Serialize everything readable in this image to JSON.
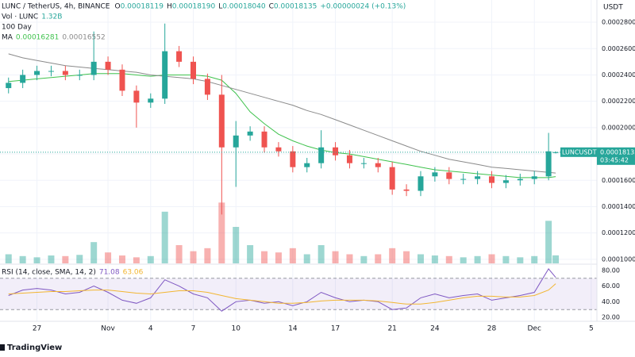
{
  "header": {
    "symbol": "LUNC / TetherUS, 4h, BINANCE",
    "ohlc": [
      {
        "k": "O",
        "v": "0.00018119"
      },
      {
        "k": "H",
        "v": "0.00018190"
      },
      {
        "k": "L",
        "v": "0.00018040"
      },
      {
        "k": "C",
        "v": "0.00018135"
      }
    ],
    "change": "+0.00000024 (+0.13%)"
  },
  "chart_data": [
    {
      "type": "candlestick",
      "y_axis_label": "USDT",
      "x": [
        25,
        26,
        27,
        28,
        29,
        30,
        31,
        32,
        33,
        34,
        35,
        36,
        37,
        38,
        39,
        40,
        41,
        42,
        43,
        44,
        45,
        46,
        47,
        48,
        49,
        50,
        51,
        52,
        53,
        54,
        55,
        56,
        57,
        58,
        59,
        60,
        61,
        62,
        63,
        63.5
      ],
      "open": [
        0.00023,
        0.000234,
        0.00024,
        0.000243,
        0.000243,
        0.00024,
        0.00024,
        0.00025,
        0.000244,
        0.000228,
        0.000219,
        0.000222,
        0.000258,
        0.00025,
        0.000237,
        0.000225,
        0.000185,
        0.000194,
        0.000197,
        0.000185,
        0.000182,
        0.00017,
        0.000173,
        0.000185,
        0.000179,
        0.000173,
        0.000173,
        0.00017,
        0.000153,
        0.000152,
        0.000163,
        0.000166,
        0.000161,
        0.000161,
        0.000163,
        0.000158,
        0.00016,
        0.000161,
        0.000163,
        0.00018119
      ],
      "high": [
        0.000238,
        0.000244,
        0.000247,
        0.000247,
        0.000247,
        0.000244,
        0.000273,
        0.000254,
        0.000248,
        0.000232,
        0.000226,
        0.000279,
        0.000262,
        0.000254,
        0.000241,
        0.00024,
        0.000205,
        0.000201,
        0.000201,
        0.000189,
        0.000186,
        0.000177,
        0.000198,
        0.000189,
        0.000183,
        0.000177,
        0.000177,
        0.000174,
        0.000157,
        0.000167,
        0.00017,
        0.00017,
        0.000165,
        0.000167,
        0.000167,
        0.000164,
        0.000165,
        0.000167,
        0.000196,
        0.0001819
      ],
      "low": [
        0.000226,
        0.00023,
        0.000236,
        0.000239,
        0.000236,
        0.000236,
        0.000236,
        0.00024,
        0.000224,
        0.0002,
        0.000215,
        0.000218,
        0.000246,
        0.000233,
        0.000221,
        0.000134,
        0.000155,
        0.00019,
        0.000181,
        0.000178,
        0.000166,
        0.000166,
        0.000169,
        0.000175,
        0.000169,
        0.000169,
        0.000166,
        0.000149,
        0.000148,
        0.000148,
        0.000159,
        0.000157,
        0.000157,
        0.000157,
        0.000154,
        0.000154,
        0.000156,
        0.000157,
        0.00016,
        0.0001804
      ],
      "close": [
        0.000234,
        0.00024,
        0.000243,
        0.000243,
        0.00024,
        0.00024,
        0.00025,
        0.000244,
        0.000228,
        0.000219,
        0.000222,
        0.000258,
        0.00025,
        0.000237,
        0.000225,
        0.000185,
        0.000194,
        0.000197,
        0.000185,
        0.000182,
        0.00017,
        0.000173,
        0.000185,
        0.000179,
        0.000173,
        0.000173,
        0.00017,
        0.000153,
        0.000152,
        0.000163,
        0.000166,
        0.000161,
        0.000161,
        0.000163,
        0.000158,
        0.00016,
        0.000161,
        0.000163,
        0.000182,
        0.00018135
      ],
      "up_color": "#26a69a",
      "down_color": "#ef5350",
      "volume": {
        "name": "Vol · LUNC",
        "value_label": "1.32B",
        "ylim": [
          0,
          12000000000
        ],
        "values": [
          1500000000,
          1200000000,
          1000000000,
          1300000000,
          1200000000,
          1400000000,
          3500000000,
          1800000000,
          1300000000,
          1000000000,
          1200000000,
          8500000000,
          3000000000,
          2000000000,
          2500000000,
          10000000000,
          6000000000,
          3000000000,
          2000000000,
          1800000000,
          2500000000,
          1500000000,
          3000000000,
          2000000000,
          1500000000,
          1200000000,
          1500000000,
          2500000000,
          2000000000,
          1500000000,
          1300000000,
          1200000000,
          1000000000,
          1200000000,
          1500000000,
          1200000000,
          1000000000,
          1200000000,
          7000000000,
          1320000000
        ]
      },
      "series": [
        {
          "name": "MA",
          "color": "#3fc24d",
          "values": [
            0.000235,
            0.000236,
            0.000237,
            0.000238,
            0.000239,
            0.00024,
            0.000241,
            0.000241,
            0.000241,
            0.00024,
            0.000239,
            0.00024,
            0.00024,
            0.00024,
            0.000239,
            0.000236,
            0.000226,
            0.000212,
            0.000203,
            0.000195,
            0.00019,
            0.000186,
            0.000183,
            0.000181,
            0.00018,
            0.000178,
            0.000176,
            0.000174,
            0.000172,
            0.00017,
            0.000168,
            0.000167,
            0.000166,
            0.000165,
            0.000164,
            0.000163,
            0.000162,
            0.000162,
            0.000162,
            0.00016281
          ]
        },
        {
          "name": "100 Day",
          "color": "#8a8a8a",
          "values": [
            0.000256,
            0.000253,
            0.000251,
            0.000249,
            0.000247,
            0.000246,
            0.000245,
            0.000244,
            0.000243,
            0.000242,
            0.00024,
            0.000239,
            0.000238,
            0.000237,
            0.000235,
            0.000232,
            0.000229,
            0.000226,
            0.000223,
            0.00022,
            0.000217,
            0.000213,
            0.00021,
            0.000206,
            0.000202,
            0.000198,
            0.000194,
            0.00019,
            0.000186,
            0.000182,
            0.000179,
            0.000176,
            0.000174,
            0.000172,
            0.00017,
            0.000169,
            0.000168,
            0.000167,
            0.000166,
            0.00016552
          ]
        }
      ],
      "last_price": {
        "symbol": "LUNCUSDT",
        "price": "0.00018135",
        "countdown": "03:45:42"
      },
      "xlim": [
        24.4,
        66.4
      ],
      "xticks": [
        {
          "value": 27,
          "label": "27"
        },
        {
          "value": 32,
          "label": "Nov"
        },
        {
          "value": 35,
          "label": "4"
        },
        {
          "value": 38,
          "label": "7"
        },
        {
          "value": 41,
          "label": "10"
        },
        {
          "value": 45,
          "label": "14"
        },
        {
          "value": 48,
          "label": "17"
        },
        {
          "value": 52,
          "label": "21"
        },
        {
          "value": 55,
          "label": "24"
        },
        {
          "value": 59,
          "label": "28"
        },
        {
          "value": 62,
          "label": "Dec"
        },
        {
          "value": 66,
          "label": "5"
        }
      ],
      "ylim": [
        9.69e-05,
        0.0002969
      ],
      "yticks": [
        {
          "value": 0.0001,
          "label": "0.00010000"
        },
        {
          "value": 0.00012,
          "label": "0.00012000"
        },
        {
          "value": 0.00014,
          "label": "0.00014000"
        },
        {
          "value": 0.00016,
          "label": "0.00016000"
        },
        {
          "value": 0.00018,
          "label": "0.00018000"
        },
        {
          "value": 0.0002,
          "label": "0.00020000"
        },
        {
          "value": 0.00022,
          "label": "0.00022000"
        },
        {
          "value": 0.00024,
          "label": "0.00024000"
        },
        {
          "value": 0.00026,
          "label": "0.00026000"
        },
        {
          "value": 0.00028,
          "label": "0.00028000"
        }
      ],
      "grid": true
    },
    {
      "type": "line",
      "x": [
        25,
        26,
        27,
        28,
        29,
        30,
        31,
        32,
        33,
        34,
        35,
        36,
        37,
        38,
        39,
        40,
        41,
        42,
        43,
        44,
        45,
        46,
        47,
        48,
        49,
        50,
        51,
        52,
        53,
        54,
        55,
        56,
        57,
        58,
        59,
        60,
        61,
        62,
        63,
        63.5
      ],
      "series": [
        {
          "name": "RSI (14, close, SMA, 14, 2)",
          "color": "#7e57c2",
          "values": [
            48,
            55,
            57,
            55,
            50,
            52,
            60,
            52,
            42,
            38,
            45,
            68,
            60,
            50,
            45,
            28,
            40,
            42,
            38,
            40,
            35,
            40,
            52,
            45,
            40,
            42,
            40,
            30,
            32,
            45,
            50,
            45,
            48,
            50,
            42,
            45,
            48,
            52,
            82,
            71.08
          ]
        },
        {
          "color": "#f2b632",
          "values": [
            50,
            51,
            52,
            53,
            53,
            54,
            55,
            55,
            53,
            51,
            50,
            52,
            54,
            54,
            52,
            48,
            44,
            42,
            40,
            38,
            38,
            39,
            41,
            42,
            42,
            42,
            41,
            39,
            37,
            37,
            39,
            42,
            45,
            47,
            47,
            46,
            46,
            48,
            55,
            63.06
          ]
        }
      ],
      "bands": [
        30,
        70
      ],
      "band_color": "rgba(126,87,194,0.1)",
      "xlim": [
        24.4,
        66.4
      ],
      "ylim": [
        15,
        87
      ],
      "yticks": [
        {
          "value": 20,
          "label": "20.00"
        },
        {
          "value": 40,
          "label": "40.00"
        },
        {
          "value": 60,
          "label": "60.00"
        },
        {
          "value": 80,
          "label": "80.00"
        }
      ]
    }
  ],
  "footer": {
    "brand": "TradingView"
  }
}
